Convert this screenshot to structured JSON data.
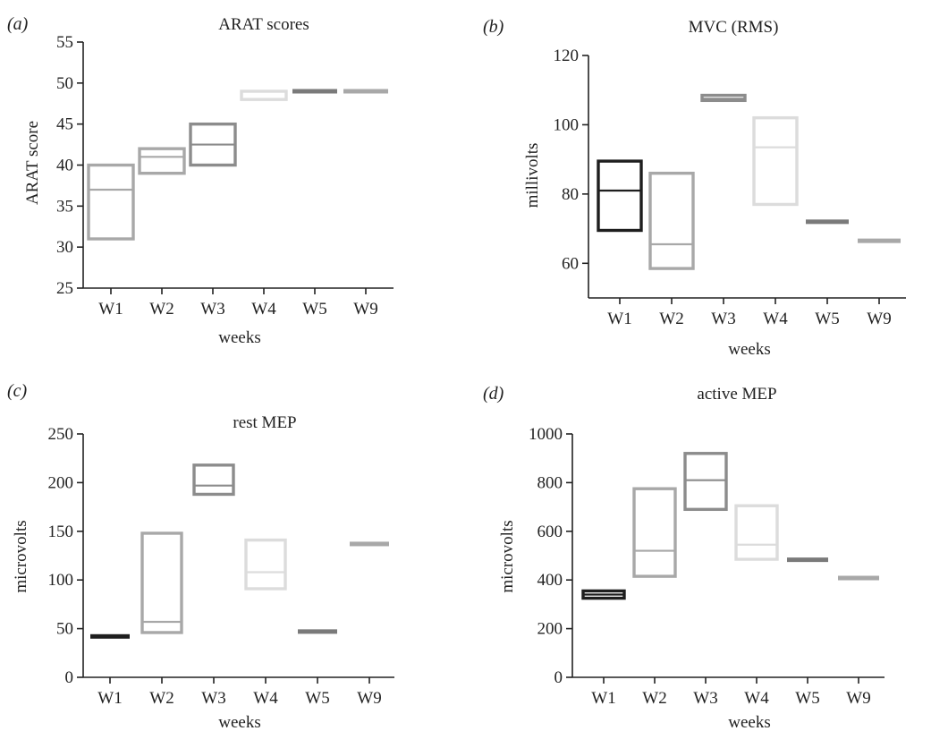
{
  "chart_data": [
    {
      "panel": "(a)",
      "type": "box",
      "title": "ARAT scores",
      "xlabel": "weeks",
      "ylabel": "ARAT score",
      "categories": [
        "W1",
        "W2",
        "W3",
        "W4",
        "W5",
        "W9"
      ],
      "ylim": [
        25,
        55
      ],
      "yticks": [
        25,
        30,
        35,
        40,
        45,
        50,
        55
      ],
      "boxes": [
        {
          "low": 31,
          "median": 37,
          "high": 40,
          "color": "#a8a8a8"
        },
        {
          "low": 39,
          "median": 41,
          "high": 42,
          "color": "#a8a8a8"
        },
        {
          "low": 40,
          "median": 42.5,
          "high": 45,
          "color": "#8c8c8c"
        },
        {
          "low": 48,
          "median": 49,
          "high": 49,
          "color": "#dcdcdc"
        },
        {
          "low": 49,
          "median": 49,
          "high": 49,
          "color": "#7a7a7a"
        },
        {
          "low": 49,
          "median": 49,
          "high": 49,
          "color": "#a8a8a8"
        }
      ]
    },
    {
      "panel": "(b)",
      "type": "box",
      "title": "MVC (RMS)",
      "xlabel": "weeks",
      "ylabel": "millivolts",
      "categories": [
        "W1",
        "W2",
        "W3",
        "W4",
        "W5",
        "W9"
      ],
      "ylim": [
        50,
        120
      ],
      "yticks": [
        60,
        80,
        100,
        120
      ],
      "boxes": [
        {
          "low": 69.5,
          "median": 81,
          "high": 89.5,
          "color": "#1e1e1e"
        },
        {
          "low": 58.5,
          "median": 65.5,
          "high": 86,
          "color": "#a8a8a8"
        },
        {
          "low": 107,
          "median": 107.5,
          "high": 108.5,
          "color": "#8c8c8c"
        },
        {
          "low": 77,
          "median": 93.5,
          "high": 102,
          "color": "#dcdcdc"
        },
        {
          "low": 72,
          "median": 72,
          "high": 72,
          "color": "#7a7a7a"
        },
        {
          "low": 66.5,
          "median": 66.5,
          "high": 66.5,
          "color": "#a8a8a8"
        }
      ]
    },
    {
      "panel": "(c)",
      "type": "box",
      "title": "rest MEP",
      "xlabel": "weeks",
      "ylabel": "microvolts",
      "categories": [
        "W1",
        "W2",
        "W3",
        "W4",
        "W5",
        "W9"
      ],
      "ylim": [
        0,
        250
      ],
      "yticks": [
        0,
        50,
        100,
        150,
        200,
        250
      ],
      "boxes": [
        {
          "low": 41,
          "median": 42,
          "high": 43,
          "color": "#1e1e1e"
        },
        {
          "low": 46,
          "median": 57,
          "high": 148,
          "color": "#a8a8a8"
        },
        {
          "low": 188,
          "median": 197,
          "high": 218,
          "color": "#8c8c8c"
        },
        {
          "low": 91,
          "median": 108,
          "high": 141,
          "color": "#dcdcdc"
        },
        {
          "low": 47,
          "median": 47,
          "high": 47,
          "color": "#7a7a7a"
        },
        {
          "low": 137,
          "median": 137,
          "high": 137,
          "color": "#a8a8a8"
        }
      ]
    },
    {
      "panel": "(d)",
      "type": "box",
      "title": "active MEP",
      "xlabel": "weeks",
      "ylabel": "microvolts",
      "categories": [
        "W1",
        "W2",
        "W3",
        "W4",
        "W5",
        "W9"
      ],
      "ylim": [
        0,
        1000
      ],
      "yticks": [
        0,
        200,
        400,
        600,
        800,
        1000
      ],
      "boxes": [
        {
          "low": 325,
          "median": 340,
          "high": 355,
          "color": "#1e1e1e"
        },
        {
          "low": 415,
          "median": 520,
          "high": 775,
          "color": "#a8a8a8"
        },
        {
          "low": 690,
          "median": 810,
          "high": 920,
          "color": "#8c8c8c"
        },
        {
          "low": 485,
          "median": 545,
          "high": 705,
          "color": "#dcdcdc"
        },
        {
          "low": 483,
          "median": 483,
          "high": 483,
          "color": "#7a7a7a"
        },
        {
          "low": 408,
          "median": 408,
          "high": 408,
          "color": "#a8a8a8"
        }
      ]
    }
  ]
}
